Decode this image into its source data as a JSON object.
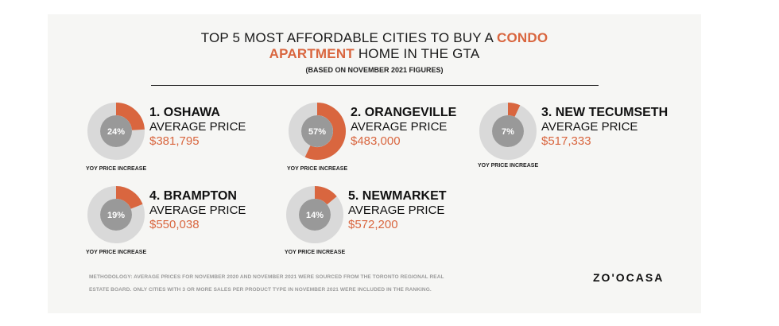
{
  "header": {
    "title_line1_a": "TOP 5 MOST AFFORDABLE CITIES TO BUY A",
    "title_line1_b": "CONDO",
    "title_line2_a": "APARTMENT",
    "title_line2_b": "HOME IN THE GTA",
    "subtitle": "(BASED ON NOVEMBER 2021 FIGURES)"
  },
  "labels": {
    "average_price": "AVERAGE PRICE",
    "yoy": "YOY PRICE INCREASE"
  },
  "chart_data": {
    "type": "pie",
    "items": [
      {
        "rank_name": "1. OSHAWA",
        "percent_label": "24%",
        "percent": 24,
        "price": "$381,795"
      },
      {
        "rank_name": "2. ORANGEVILLE",
        "percent_label": "57%",
        "percent": 57,
        "price": "$483,000"
      },
      {
        "rank_name": "3. NEW TECUMSETH",
        "percent_label": "7%",
        "percent": 7,
        "price": "$517,333"
      },
      {
        "rank_name": "4. BRAMPTON",
        "percent_label": "19%",
        "percent": 19,
        "price": "$550,038"
      },
      {
        "rank_name": "5. NEWMARKET",
        "percent_label": "14%",
        "percent": 14,
        "price": "$572,200"
      }
    ]
  },
  "footer": {
    "methodology_line1": "METHODOLOGY: AVERAGE PRICES FOR NOVEMBER 2020 AND NOVEMBER 2021 WERE SOURCED FROM THE TORONTO REGIONAL REAL",
    "methodology_line2": "ESTATE BOARD. ONLY CITIES WITH 3 OR MORE SALES PER PRODUCT TYPE IN NOVEMBER 2021 WERE INCLUDED IN THE RANKING.",
    "logo": "ZO'OCASA"
  },
  "colors": {
    "accent": "#d9663f",
    "ring": "#d9d9d9",
    "center": "#999999"
  }
}
